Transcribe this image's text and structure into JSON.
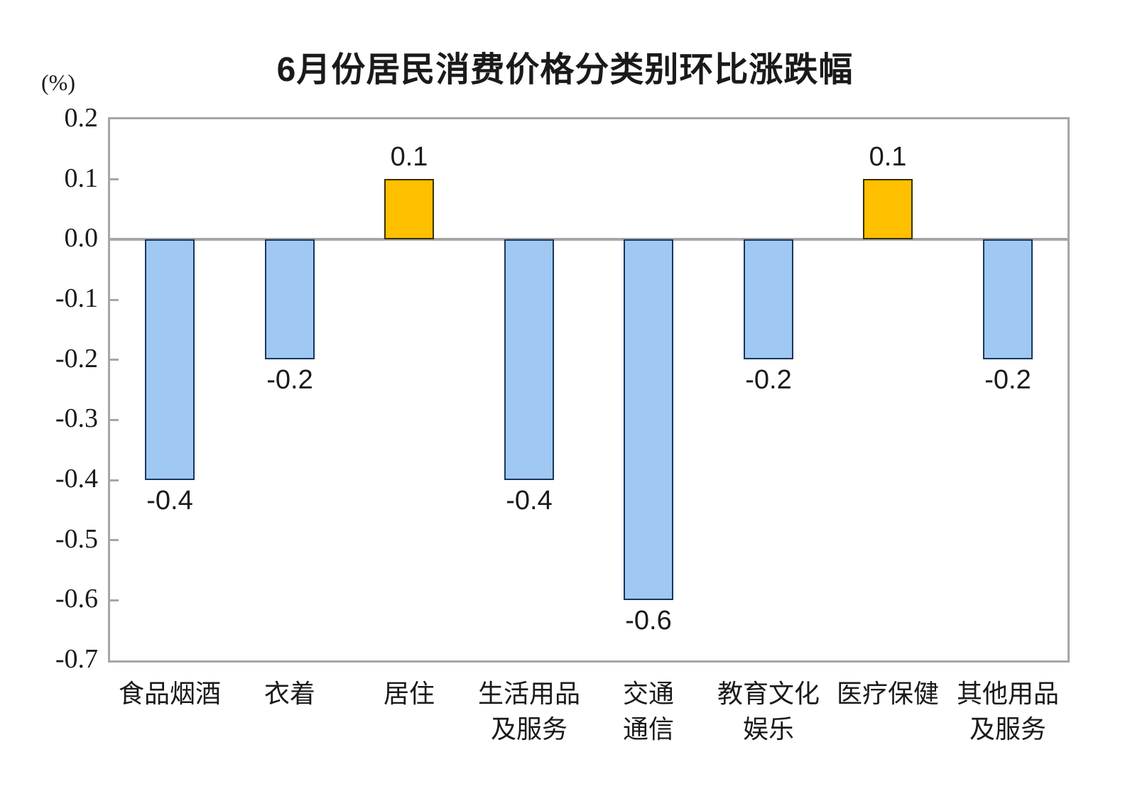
{
  "chart_data": {
    "type": "bar",
    "title": "6月份居民消费价格分类别环比涨跌幅",
    "unit_label": "(%)",
    "categories": [
      "食品烟酒",
      "衣着",
      "居住",
      "生活用品及服务",
      "交通通信",
      "教育文化娱乐",
      "医疗保健",
      "其他用品及服务"
    ],
    "category_lines": [
      [
        "食品烟酒"
      ],
      [
        "衣着"
      ],
      [
        "居住"
      ],
      [
        "生活用品",
        "及服务"
      ],
      [
        "交通",
        "通信"
      ],
      [
        "教育文化",
        "娱乐"
      ],
      [
        "医疗保健"
      ],
      [
        "其他用品",
        "及服务"
      ]
    ],
    "values": [
      -0.4,
      -0.2,
      0.1,
      -0.4,
      -0.6,
      -0.2,
      0.1,
      -0.2
    ],
    "data_labels": [
      "-0.4",
      "-0.2",
      "0.1",
      "-0.4",
      "-0.6",
      "-0.2",
      "0.1",
      "-0.2"
    ],
    "xlabel": "",
    "ylabel": "(%)",
    "ylim": [
      -0.7,
      0.2
    ],
    "ytick_step": 0.1,
    "yticks": [
      "0.2",
      "0.1",
      "0.0",
      "-0.1",
      "-0.2",
      "-0.3",
      "-0.4",
      "-0.5",
      "-0.6",
      "-0.7"
    ],
    "grid": false,
    "legend_position": "none",
    "colors": {
      "positive_fill": "#FFC000",
      "positive_border": "#3B3000",
      "negative_fill": "#9FC8F2",
      "negative_border": "#17375D",
      "axis_gray": "#A6A6A6",
      "text": "#1a1a1a"
    }
  }
}
